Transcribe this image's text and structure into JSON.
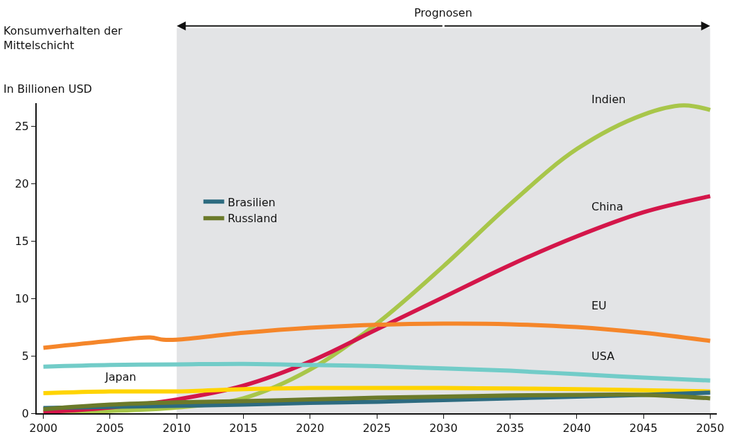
{
  "chart_data": {
    "type": "line",
    "title": "Konsumverhalten der\nMittelschicht",
    "ylabel": "In Billionen USD",
    "x": [
      2000,
      2005,
      2010,
      2015,
      2020,
      2025,
      2030,
      2035,
      2040,
      2045,
      2050
    ],
    "series": [
      {
        "name": "Indien",
        "color": "#a8c64a",
        "x": [
          2000,
          2005,
          2010,
          2015,
          2020,
          2025,
          2030,
          2035,
          2040,
          2045,
          2048,
          2050
        ],
        "values": [
          0.1,
          0.2,
          0.5,
          1.3,
          3.8,
          7.8,
          12.8,
          18.2,
          23.0,
          26.0,
          26.8,
          26.4
        ]
      },
      {
        "name": "China",
        "color": "#d4164a",
        "values": [
          0.1,
          0.5,
          1.2,
          2.4,
          4.5,
          7.3,
          10.1,
          12.9,
          15.4,
          17.5,
          18.9
        ]
      },
      {
        "name": "EU",
        "color": "#f5862a",
        "x": [
          2000,
          2005,
          2008,
          2009,
          2010,
          2015,
          2020,
          2025,
          2030,
          2035,
          2040,
          2045,
          2050
        ],
        "values": [
          5.7,
          6.3,
          6.6,
          6.4,
          6.4,
          7.0,
          7.45,
          7.7,
          7.8,
          7.75,
          7.5,
          7.0,
          6.3
        ]
      },
      {
        "name": "USA",
        "color": "#72ccc8",
        "values": [
          4.05,
          4.2,
          4.25,
          4.3,
          4.2,
          4.1,
          3.9,
          3.7,
          3.4,
          3.1,
          2.85
        ]
      },
      {
        "name": "Japan",
        "color": "#ffd400",
        "values": [
          1.75,
          1.9,
          1.9,
          2.1,
          2.2,
          2.2,
          2.2,
          2.15,
          2.1,
          2.0,
          1.9
        ]
      },
      {
        "name": "Brasilien",
        "color": "#2d6b80",
        "values": [
          0.45,
          0.55,
          0.65,
          0.75,
          0.9,
          1.0,
          1.15,
          1.3,
          1.45,
          1.6,
          1.8
        ]
      },
      {
        "name": "Russland",
        "color": "#6b7a2a",
        "values": [
          0.35,
          0.75,
          0.95,
          1.05,
          1.2,
          1.35,
          1.45,
          1.55,
          1.6,
          1.6,
          1.3
        ]
      }
    ],
    "xlim": [
      1999.5,
      2050.5
    ],
    "xticks": [
      2000,
      2005,
      2010,
      2015,
      2020,
      2025,
      2030,
      2035,
      2040,
      2045,
      2050
    ],
    "ylim": [
      0,
      27
    ],
    "yticks": [
      0,
      5,
      10,
      15,
      20,
      25
    ],
    "bands": [
      {
        "axis": "x",
        "from": 2010,
        "to": 2050,
        "label": "Prognosen",
        "color": "#e3e4e6"
      }
    ],
    "grid": false,
    "legend": "left",
    "marker": "none",
    "line_style": "solid"
  }
}
